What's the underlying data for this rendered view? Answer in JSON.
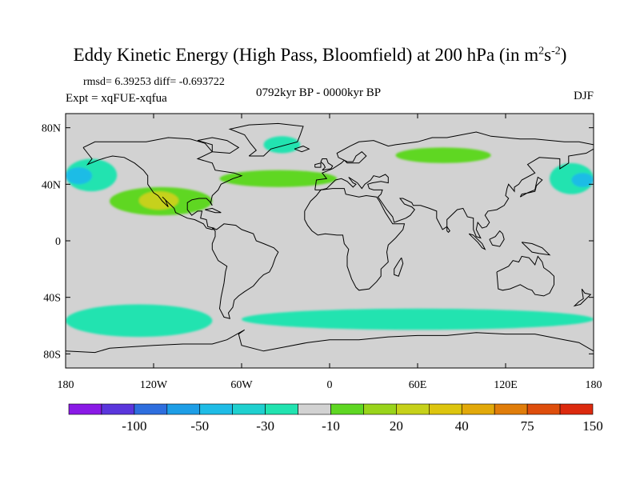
{
  "title": {
    "text": "Eddy Kinetic Energy (High Pass, Bloomfield) at 200 hPa (in m",
    "sup1": "2",
    "mid": "s",
    "sup2": "-2",
    "close": ")"
  },
  "stats": {
    "line": "rmsd= 6.39253 diff= -0.693722"
  },
  "experiment": "Expt = xqFUE-xqfua",
  "period": "0792kyr BP - 0000kyr BP",
  "season": "DJF",
  "axes": {
    "lat_ticks": [
      "80N",
      "40N",
      "0",
      "40S",
      "80S"
    ],
    "lon_ticks": [
      "180",
      "120W",
      "60W",
      "0",
      "60E",
      "120E",
      "180"
    ]
  },
  "colorbar": {
    "colors": [
      "#8a1ae6",
      "#5a36dc",
      "#2e6ede",
      "#1e9ee6",
      "#1fbce6",
      "#1fd0cf",
      "#21e3b0",
      "#d2d2d2",
      "#5fd723",
      "#99d41b",
      "#c6d11a",
      "#ddc50e",
      "#e2a90a",
      "#e07d0a",
      "#de4e0c",
      "#dc2a0e"
    ],
    "labels": [
      "-100",
      "-50",
      "-30",
      "-10",
      "20",
      "40",
      "75",
      "150"
    ]
  },
  "map_colors": {
    "ocean": "#d2d2d2",
    "coast": "#000000"
  },
  "chart_data": {
    "type": "heatmap",
    "title": "Eddy Kinetic Energy (High Pass, Bloomfield) at 200 hPa (in m^2 s^-2)",
    "variable": "difference xqFUE - xqfua, DJF",
    "lon_range": [
      -180,
      180
    ],
    "lat_range": [
      -90,
      90
    ],
    "features": [
      {
        "name": "negative-pacific-west",
        "level": -10,
        "lon": [
          -180,
          -145
        ],
        "lat": [
          35,
          58
        ]
      },
      {
        "name": "negative-pacific-west-core",
        "level": -30,
        "lon": [
          -180,
          -162
        ],
        "lat": [
          40,
          52
        ]
      },
      {
        "name": "negative-pacific-east",
        "level": -10,
        "lon": [
          150,
          180
        ],
        "lat": [
          33,
          55
        ]
      },
      {
        "name": "negative-pacific-east-core",
        "level": -30,
        "lon": [
          165,
          180
        ],
        "lat": [
          38,
          48
        ]
      },
      {
        "name": "negative-north-atlantic",
        "level": -10,
        "lon": [
          -45,
          -20
        ],
        "lat": [
          62,
          74
        ]
      },
      {
        "name": "positive-north-pacific-america",
        "level": 20,
        "lon": [
          -150,
          -80
        ],
        "lat": [
          18,
          38
        ]
      },
      {
        "name": "positive-north-pacific-core",
        "level": 40,
        "lon": [
          -130,
          -103
        ],
        "lat": [
          22,
          35
        ]
      },
      {
        "name": "positive-north-atlantic-jet",
        "level": 20,
        "lon": [
          -75,
          5
        ],
        "lat": [
          38,
          50
        ]
      },
      {
        "name": "positive-central-asia",
        "level": 20,
        "lon": [
          45,
          110
        ],
        "lat": [
          55,
          66
        ]
      },
      {
        "name": "negative-southern-ocean-west",
        "level": -10,
        "lon": [
          -180,
          -80
        ],
        "lat": [
          -68,
          -45
        ]
      },
      {
        "name": "negative-southern-ocean-east",
        "level": -10,
        "lon": [
          -60,
          180
        ],
        "lat": [
          -63,
          -48
        ]
      }
    ]
  }
}
